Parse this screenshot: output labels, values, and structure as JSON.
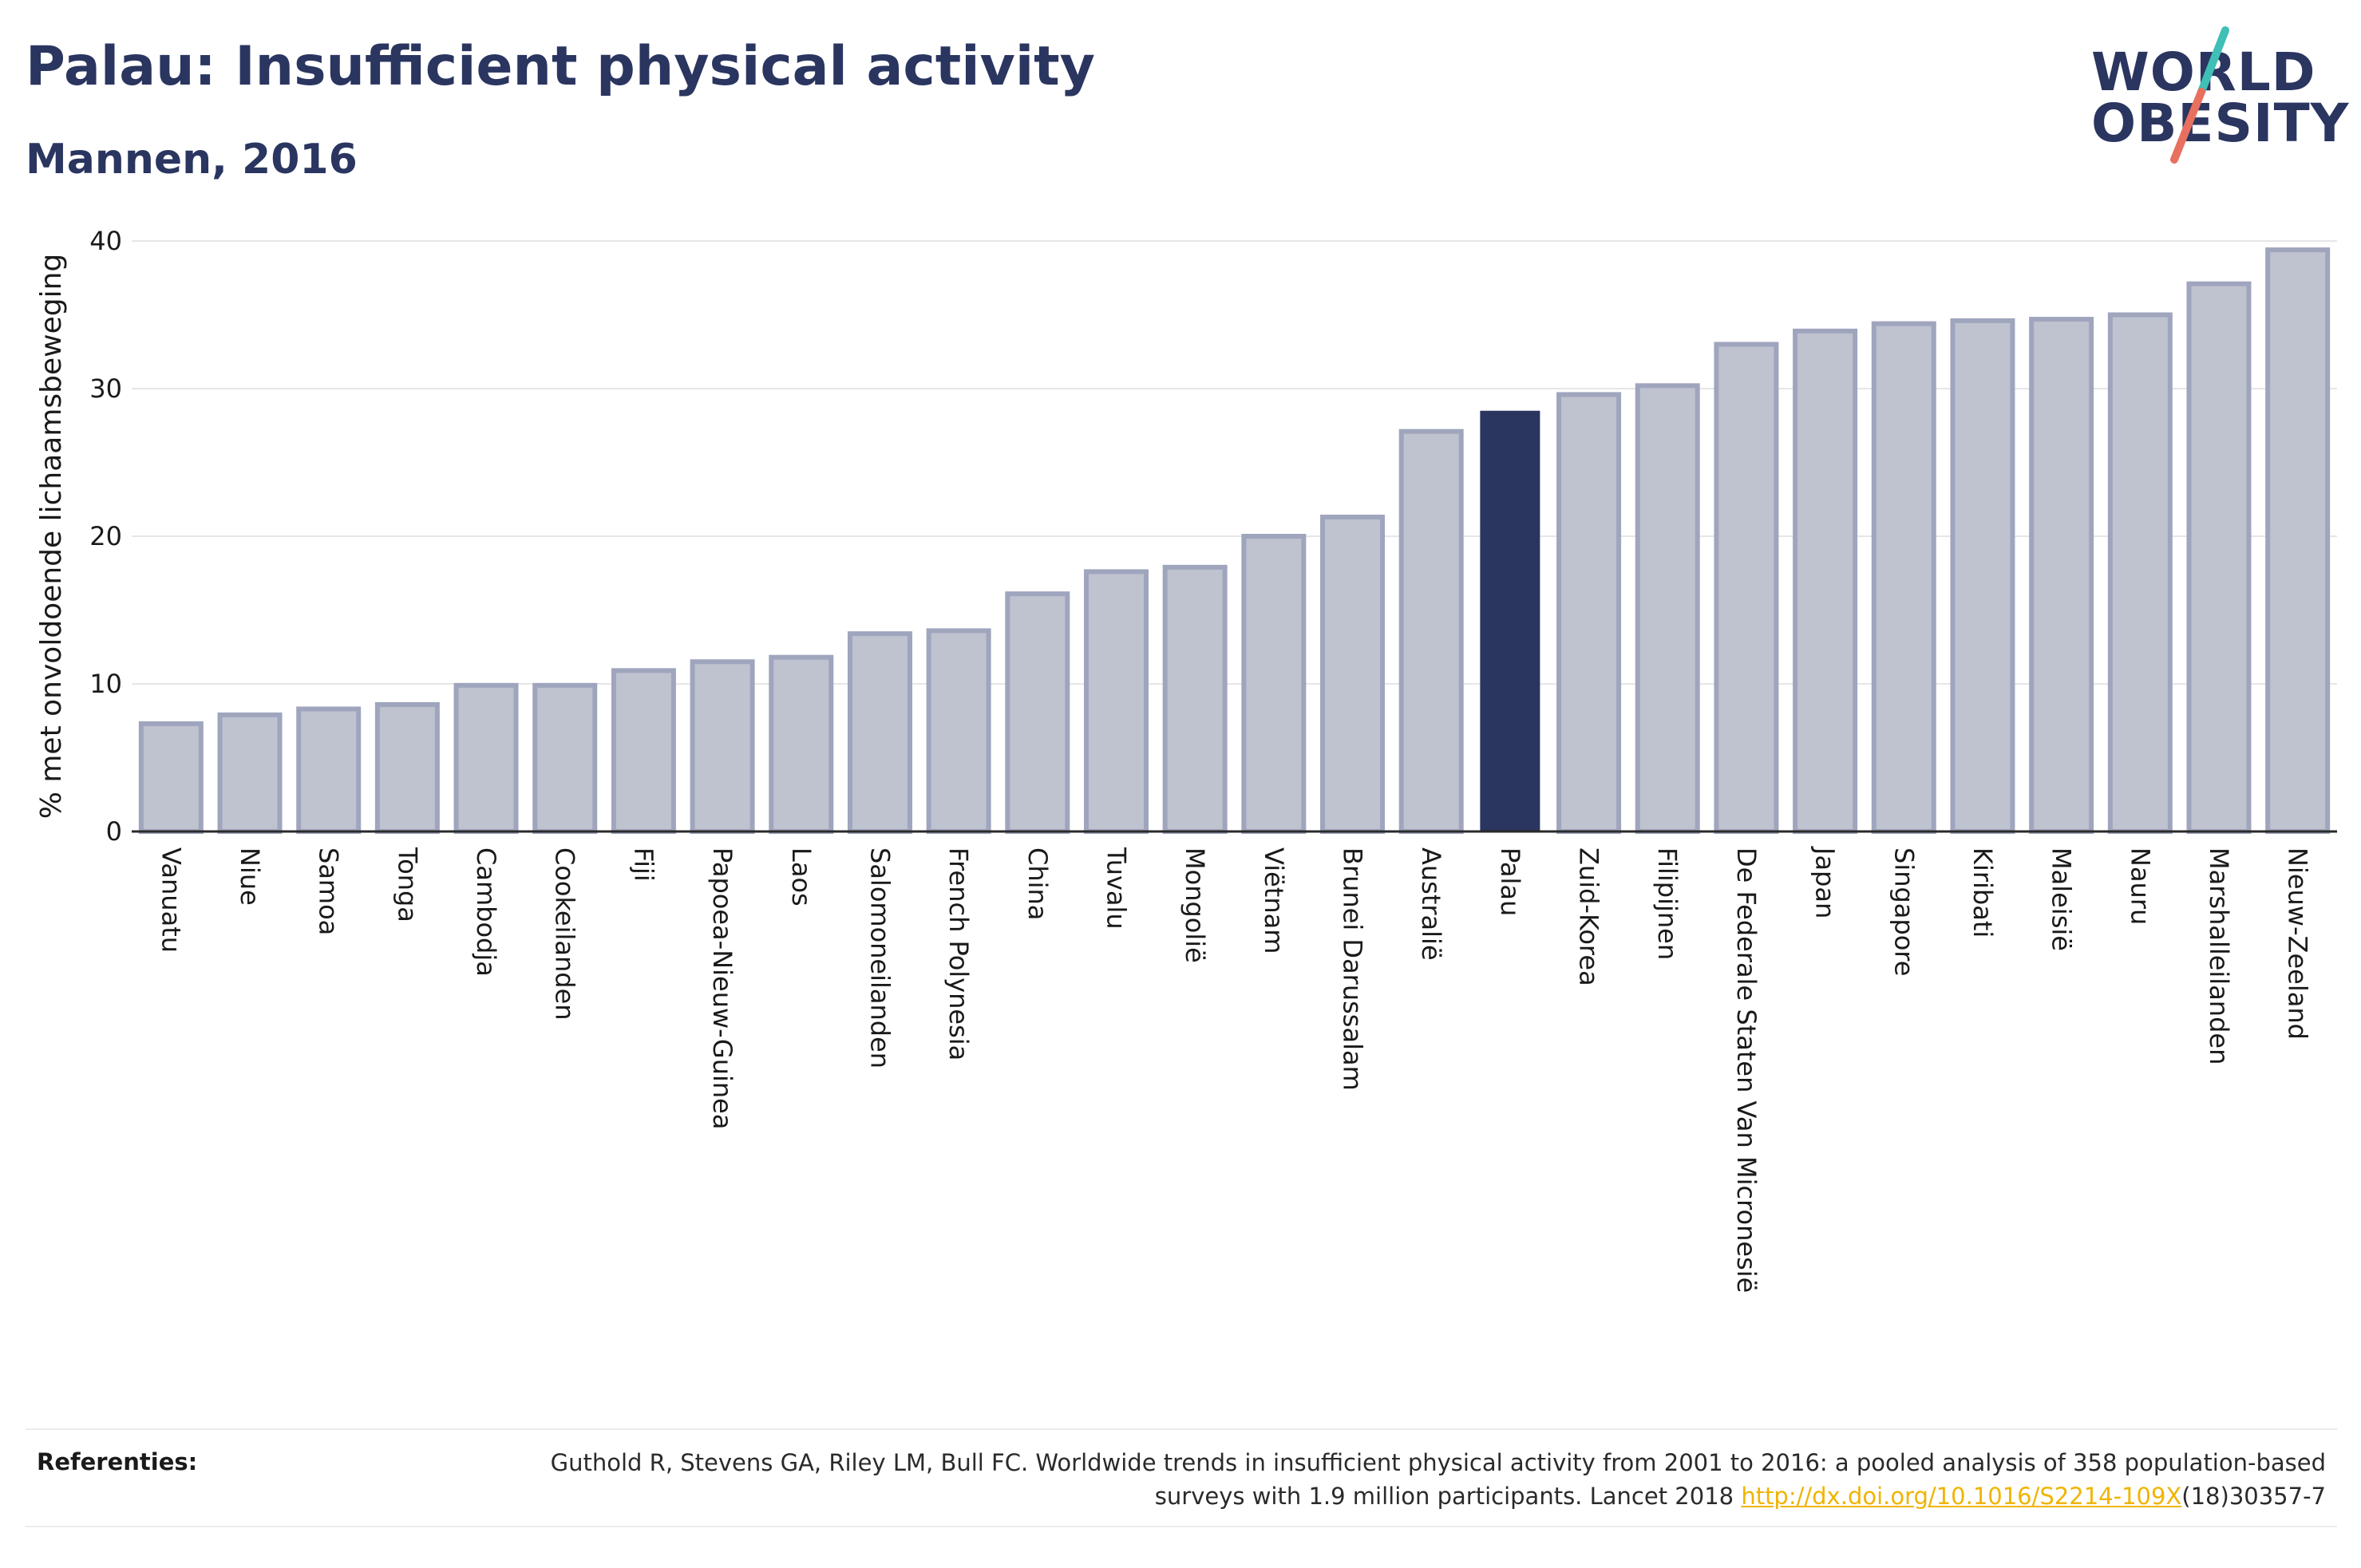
{
  "header": {
    "title": "Palau: Insufficient physical activity",
    "subtitle": "Mannen, 2016"
  },
  "logo": {
    "line1": "WORLD",
    "line2": "OBESITY",
    "icon": "slash-logo-icon",
    "colors": {
      "text": "#2a3560",
      "slash_top": "#3fbfb5",
      "slash_bottom": "#e8705f"
    }
  },
  "chart_data": {
    "type": "bar",
    "title": "Palau: Insufficient physical activity",
    "subtitle": "Mannen, 2016",
    "xlabel": "",
    "ylabel": "% met onvoldoende lichaamsbeweging",
    "ylim": [
      0,
      40
    ],
    "yticks": [
      0,
      10,
      20,
      30,
      40
    ],
    "grid": true,
    "highlight": "Palau",
    "colors": {
      "bar": "#bfc2cf",
      "bar_edge": "#9fa5bd",
      "highlight": "#2a3560"
    },
    "categories": [
      "Vanuatu",
      "Niue",
      "Samoa",
      "Tonga",
      "Cambodja",
      "Cookeilanden",
      "Fiji",
      "Papoea-Nieuw-Guinea",
      "Laos",
      "Salomoneilanden",
      "French Polynesia",
      "China",
      "Tuvalu",
      "Mongolië",
      "Viëtnam",
      "Brunei Darussalam",
      "Australië",
      "Palau",
      "Zuid-Korea",
      "Filipijnen",
      "De Federale Staten Van Micronesië",
      "Japan",
      "Singapore",
      "Kiribati",
      "Maleisië",
      "Nauru",
      "Marshalleilanden",
      "Nieuw-Zeeland"
    ],
    "values": [
      7.3,
      7.9,
      8.3,
      8.6,
      9.9,
      9.9,
      10.9,
      11.5,
      11.8,
      13.4,
      13.6,
      16.1,
      17.6,
      17.9,
      20.0,
      21.3,
      27.1,
      28.5,
      29.6,
      30.2,
      33.0,
      33.9,
      34.4,
      34.6,
      34.7,
      35.0,
      37.1,
      39.4
    ]
  },
  "footer": {
    "label": "Referenties:",
    "text_before": "Guthold R, Stevens GA, Riley LM, Bull FC. Worldwide trends in insufficient physical activity from 2001 to 2016: a pooled analysis of 358 population-based surveys with 1.9 million participants. Lancet 2018 ",
    "link": "http://dx.doi.org/10.1016/S2214-109X",
    "text_after": "(18)30357-7"
  }
}
